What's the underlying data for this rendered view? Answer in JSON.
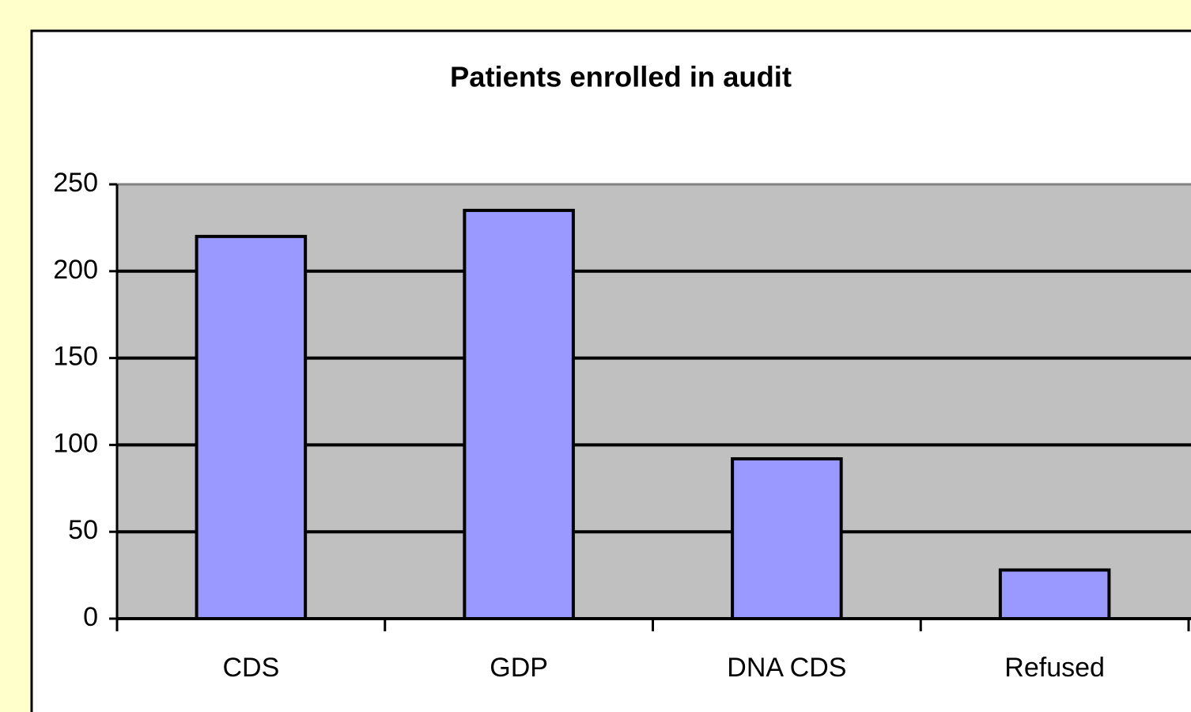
{
  "chart_data": {
    "type": "bar",
    "title": "Patients enrolled in audit",
    "categories": [
      "CDS",
      "GDP",
      "DNA CDS",
      "Refused"
    ],
    "values": [
      220,
      235,
      92,
      28
    ],
    "color": "#9999ff",
    "ylim": [
      0,
      250
    ],
    "yticks": [
      0,
      50,
      100,
      150,
      200,
      250
    ],
    "grid": true
  }
}
